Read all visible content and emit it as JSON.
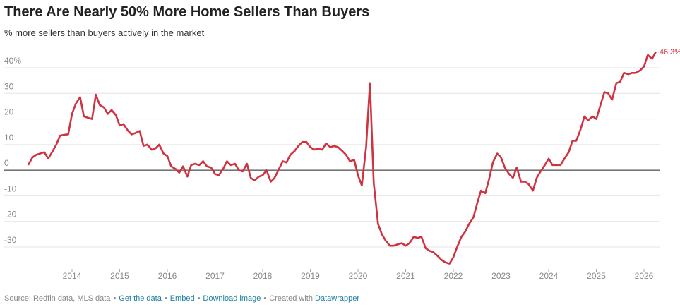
{
  "chart_data": {
    "type": "line",
    "title": "There Are Nearly 50% More Home Sellers Than Buyers",
    "subtitle": "% more sellers than buyers actively in the market",
    "xlim": [
      2013.0,
      2026.4
    ],
    "xticks": [
      2014,
      2015,
      2016,
      2017,
      2018,
      2019,
      2020,
      2021,
      2022,
      2023,
      2024,
      2025,
      2026
    ],
    "ylim": [
      -38,
      48
    ],
    "yticks": [
      -30,
      -20,
      -10,
      0,
      10,
      20,
      30,
      {
        "value": 40,
        "label": "40%"
      }
    ],
    "grid": true,
    "x": [
      2013.08,
      2013.17,
      2013.25,
      2013.33,
      2013.42,
      2013.5,
      2013.58,
      2013.67,
      2013.75,
      2013.83,
      2013.92,
      2014.0,
      2014.08,
      2014.17,
      2014.25,
      2014.33,
      2014.42,
      2014.5,
      2014.58,
      2014.67,
      2014.75,
      2014.83,
      2014.92,
      2015.0,
      2015.08,
      2015.17,
      2015.25,
      2015.33,
      2015.42,
      2015.5,
      2015.58,
      2015.67,
      2015.75,
      2015.83,
      2015.92,
      2016.0,
      2016.08,
      2016.17,
      2016.25,
      2016.33,
      2016.42,
      2016.5,
      2016.58,
      2016.67,
      2016.75,
      2016.83,
      2016.92,
      2017.0,
      2017.08,
      2017.17,
      2017.25,
      2017.33,
      2017.42,
      2017.5,
      2017.58,
      2017.67,
      2017.75,
      2017.83,
      2017.92,
      2018.0,
      2018.08,
      2018.17,
      2018.25,
      2018.33,
      2018.42,
      2018.5,
      2018.58,
      2018.67,
      2018.75,
      2018.83,
      2018.92,
      2019.0,
      2019.08,
      2019.17,
      2019.25,
      2019.33,
      2019.42,
      2019.5,
      2019.58,
      2019.67,
      2019.75,
      2019.83,
      2019.92,
      2020.0,
      2020.08,
      2020.17,
      2020.25,
      2020.33,
      2020.42,
      2020.5,
      2020.58,
      2020.67,
      2020.75,
      2020.83,
      2020.92,
      2021.0,
      2021.08,
      2021.17,
      2021.25,
      2021.33,
      2021.42,
      2021.5,
      2021.58,
      2021.67,
      2021.75,
      2021.83,
      2021.92,
      2022.0,
      2022.08,
      2022.17,
      2022.25,
      2022.33,
      2022.42,
      2022.5,
      2022.58,
      2022.67,
      2022.75,
      2022.83,
      2022.92,
      2023.0,
      2023.08,
      2023.17,
      2023.25,
      2023.33,
      2023.42,
      2023.5,
      2023.58,
      2023.67,
      2023.75,
      2023.83,
      2023.92,
      2024.0,
      2024.08,
      2024.17,
      2024.25,
      2024.33,
      2024.42,
      2024.5,
      2024.58,
      2024.67,
      2024.75,
      2024.83,
      2024.92,
      2025.0,
      2025.08,
      2025.17,
      2025.25,
      2025.33,
      2025.42,
      2025.5,
      2025.58,
      2025.67,
      2025.75,
      2025.83,
      2025.92,
      2026.0,
      2026.08,
      2026.17,
      2026.25
    ],
    "series": [
      {
        "color": "#d0323f",
        "values": [
          2,
          5,
          6,
          6.5,
          7,
          4.5,
          7,
          10,
          13.5,
          13.8,
          14,
          22,
          26,
          28.5,
          21,
          20.5,
          20,
          29.5,
          25.5,
          24.5,
          22,
          23.5,
          21.5,
          17.5,
          18,
          15.5,
          14,
          14.5,
          15.3,
          9.5,
          10,
          8,
          8.5,
          10,
          6.5,
          5.5,
          1.5,
          0.5,
          -1,
          1.5,
          -2.5,
          2,
          2.5,
          2,
          3.5,
          1.5,
          1,
          -1.5,
          -2,
          0.5,
          3.5,
          2,
          2.5,
          0,
          -0.5,
          2.5,
          -3,
          -4,
          -2.5,
          -2,
          0,
          -4.5,
          -3,
          0,
          3.5,
          3,
          6,
          7.5,
          9.5,
          11,
          11,
          9,
          8,
          8.5,
          8,
          10.5,
          9,
          9.5,
          9,
          7.5,
          6,
          3.5,
          4,
          -2,
          -6,
          9,
          34,
          -5,
          -21,
          -25,
          -27.5,
          -29.5,
          -29.5,
          -29,
          -28.5,
          -29.5,
          -28.5,
          -26,
          -26.5,
          -26,
          -30.5,
          -31.5,
          -32,
          -33.5,
          -35,
          -36,
          -36.5,
          -34,
          -30,
          -26,
          -24,
          -21,
          -18.5,
          -13,
          -8,
          -9,
          -3.5,
          3,
          6.5,
          5,
          1,
          -1.5,
          -3,
          1,
          -4.5,
          -4.5,
          -5.5,
          -8,
          -3,
          -0.5,
          2,
          4.5,
          2,
          2,
          2,
          4.5,
          7,
          11.5,
          11.5,
          16,
          21,
          19.5,
          21,
          20,
          25,
          30.5,
          30,
          27.5,
          34,
          34.5,
          38,
          37.5,
          38,
          38,
          39,
          40.5,
          45,
          43.5,
          46.3
        ],
        "value_labels": [
          null,
          null,
          null,
          null,
          null,
          null,
          null,
          null,
          null,
          null,
          null,
          null,
          null,
          null,
          null,
          null,
          null,
          null,
          null,
          null,
          null,
          null,
          null,
          null,
          null,
          null,
          null,
          null,
          null,
          null,
          null,
          null,
          null,
          null,
          null,
          null,
          null,
          null,
          null,
          null,
          null,
          null,
          null,
          null,
          null,
          null,
          null,
          null,
          null,
          null,
          null,
          null,
          null,
          null,
          null,
          null,
          null,
          null,
          null,
          null,
          null,
          null,
          null,
          null,
          null,
          null,
          null,
          null,
          null,
          null,
          null,
          null,
          null,
          null,
          null,
          null,
          null,
          null,
          null,
          null,
          null,
          null,
          null,
          null,
          null,
          null,
          null,
          null,
          null,
          null,
          null,
          null,
          null,
          null,
          null,
          null,
          null,
          null,
          null,
          null,
          null,
          null,
          null,
          null,
          null,
          null,
          null,
          null,
          null,
          null,
          null,
          null,
          null,
          null,
          null,
          null,
          null,
          null,
          null,
          null,
          null,
          null,
          null,
          null,
          null,
          null,
          null,
          null,
          null,
          null,
          null,
          null,
          null,
          null,
          null,
          null,
          null,
          null,
          null,
          null,
          null,
          null,
          null,
          null,
          null,
          null,
          null,
          null,
          null,
          null,
          null,
          null,
          null,
          null,
          null,
          null,
          null,
          null,
          "46.3%"
        ]
      }
    ],
    "footer": {
      "separator": "•",
      "items": [
        {
          "text": "Source: Redfin data, MLS data",
          "link": false
        },
        {
          "text": "Get the data",
          "link": true
        },
        {
          "text": "Embed",
          "link": true
        },
        {
          "text": "Download image",
          "link": true
        },
        {
          "text": "Created with",
          "link": false,
          "joined_next": true
        },
        {
          "text": "Datawrapper",
          "link": true
        }
      ]
    }
  }
}
